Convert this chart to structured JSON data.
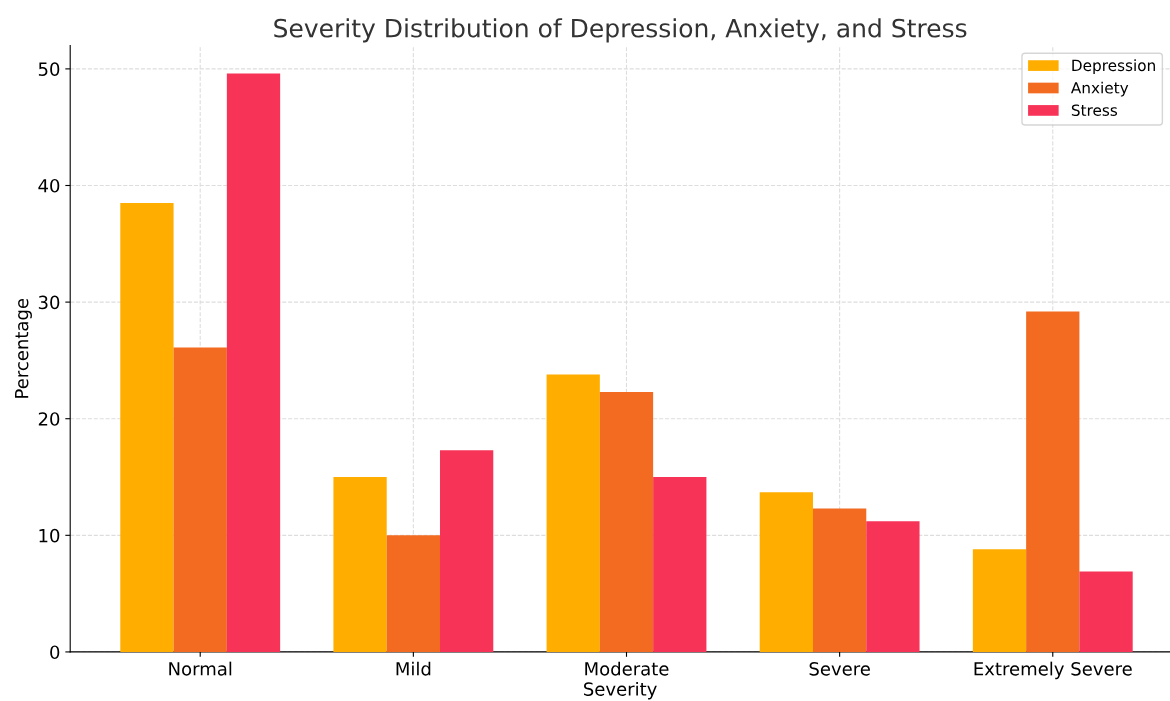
{
  "chart_data": {
    "type": "bar",
    "title": "Severity Distribution of Depression, Anxiety, and Stress",
    "xlabel": "Severity",
    "ylabel": "Percentage",
    "categories": [
      "Normal",
      "Mild",
      "Moderate",
      "Severe",
      "Extremely Severe"
    ],
    "series": [
      {
        "name": "Depression",
        "color": "#ffae00",
        "values": [
          38.5,
          15.0,
          23.8,
          13.7,
          8.8
        ]
      },
      {
        "name": "Anxiety",
        "color": "#f26b21",
        "values": [
          26.1,
          10.0,
          22.3,
          12.3,
          29.2
        ]
      },
      {
        "name": "Stress",
        "color": "#f73357",
        "values": [
          49.6,
          17.3,
          15.0,
          11.2,
          6.9
        ]
      }
    ],
    "ylim": [
      0,
      52
    ],
    "yticks": [
      0,
      10,
      20,
      30,
      40,
      50
    ],
    "grid": true,
    "legend": "top right"
  }
}
